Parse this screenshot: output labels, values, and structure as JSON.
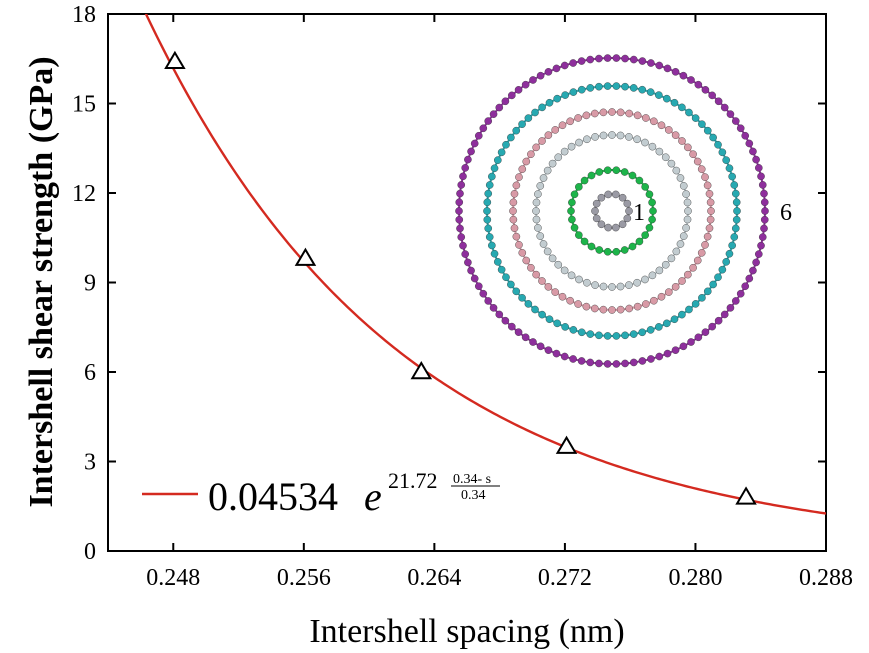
{
  "chart_data": {
    "type": "scatter",
    "xlabel": "Intershell spacing (nm)",
    "ylabel": "Intershell shear strength (GPa)",
    "xlim": [
      0.244,
      0.288
    ],
    "ylim": [
      0,
      18
    ],
    "xticks": [
      0.248,
      0.256,
      0.264,
      0.272,
      0.28,
      0.288
    ],
    "xtick_labels": [
      "0.248",
      "0.256",
      "0.264",
      "0.272",
      "0.280",
      "0.288"
    ],
    "yticks": [
      0,
      3,
      6,
      9,
      12,
      15,
      18
    ],
    "ytick_labels": [
      "0",
      "3",
      "6",
      "9",
      "12",
      "15",
      "18"
    ],
    "grid": false,
    "series": [
      {
        "marker": "triangle-open",
        "x": [
          0.2481,
          0.2561,
          0.2632,
          0.2721,
          0.2831
        ],
        "y": [
          16.4,
          9.8,
          6.0,
          3.5,
          1.8
        ]
      }
    ],
    "fit": {
      "color": "#d42a20",
      "coefficient": 0.04534,
      "rate": 21.72,
      "s0": 0.34,
      "legend": {
        "coef": "0.04534",
        "e": "e",
        "rate": "21.72",
        "numerator": "0.34- s",
        "denominator": "0.34"
      }
    },
    "legend_position": "bottom-left",
    "inset": {
      "shells": [
        {
          "color": "#9a9aa4"
        },
        {
          "color": "#1db44a"
        },
        {
          "color": "#c2ccd0"
        },
        {
          "color": "#d89aa6"
        },
        {
          "color": "#27a9b1"
        },
        {
          "color": "#8e2f9c"
        }
      ],
      "inner_label": "1",
      "outer_label": "6"
    }
  }
}
